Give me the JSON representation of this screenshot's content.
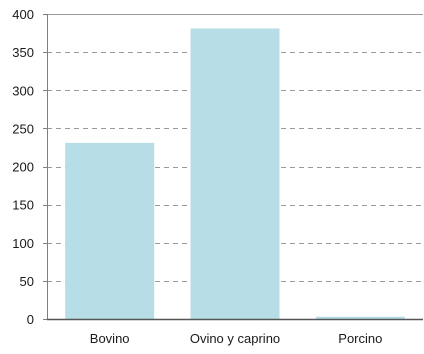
{
  "chart_data": {
    "type": "bar",
    "title": "",
    "xlabel": "",
    "ylabel": "",
    "categories": [
      "Bovino",
      "Ovino y caprino",
      "Porcino"
    ],
    "values": [
      231,
      381,
      3
    ],
    "ylim": [
      0,
      400
    ],
    "yticks": [
      0,
      50,
      100,
      150,
      200,
      250,
      300,
      350,
      400
    ],
    "grid": true,
    "legend": "none",
    "colors": {
      "bar": "#b7dde6",
      "grid": "#9a9a9a",
      "axis": "#7f7f7f"
    }
  }
}
